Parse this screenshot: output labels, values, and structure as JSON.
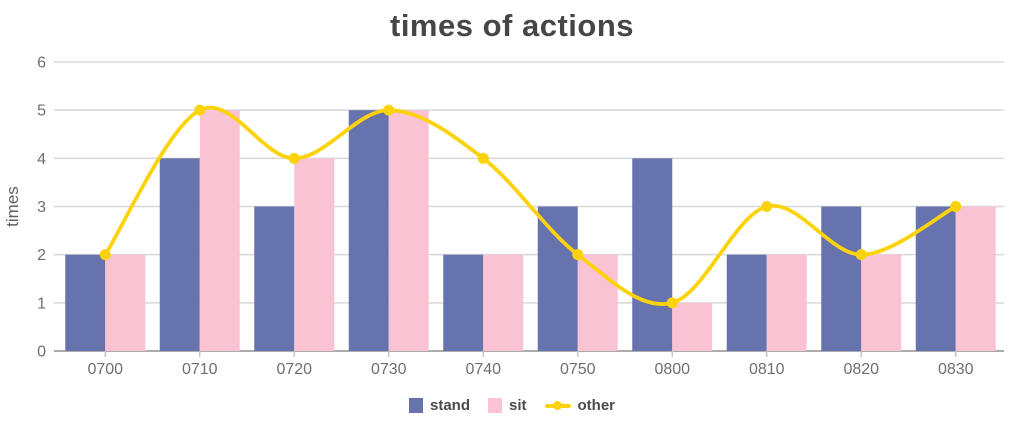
{
  "chart_data": {
    "type": "bar+line",
    "title": "times of actions",
    "xlabel": "",
    "ylabel": "times",
    "categories": [
      "0700",
      "0710",
      "0720",
      "0730",
      "0740",
      "0750",
      "0800",
      "0810",
      "0820",
      "0830"
    ],
    "series": [
      {
        "name": "stand",
        "type": "bar",
        "color": "#6673AC",
        "values": [
          2,
          4,
          3,
          5,
          2,
          3,
          4,
          2,
          3,
          3
        ]
      },
      {
        "name": "sit",
        "type": "bar",
        "color": "#FAC3D3",
        "values": [
          2,
          5,
          4,
          5,
          2,
          2,
          1,
          2,
          2,
          3
        ]
      },
      {
        "name": "other",
        "type": "line",
        "color": "#FCD30B",
        "values": [
          2,
          5,
          4,
          5,
          4,
          2,
          1,
          3,
          2,
          3
        ]
      }
    ],
    "ylim": [
      0,
      6
    ],
    "yticks": [
      0,
      1,
      2,
      3,
      4,
      5,
      6
    ],
    "grid": true,
    "legend_position": "bottom"
  },
  "colors": {
    "title_text": "#464646",
    "axis_text": "#6F6F6F",
    "gridline": "#D8D8D8",
    "zero_line": "#ABABAB",
    "tick_mark": "#C6C6C6",
    "background": "#FFFFFF"
  }
}
